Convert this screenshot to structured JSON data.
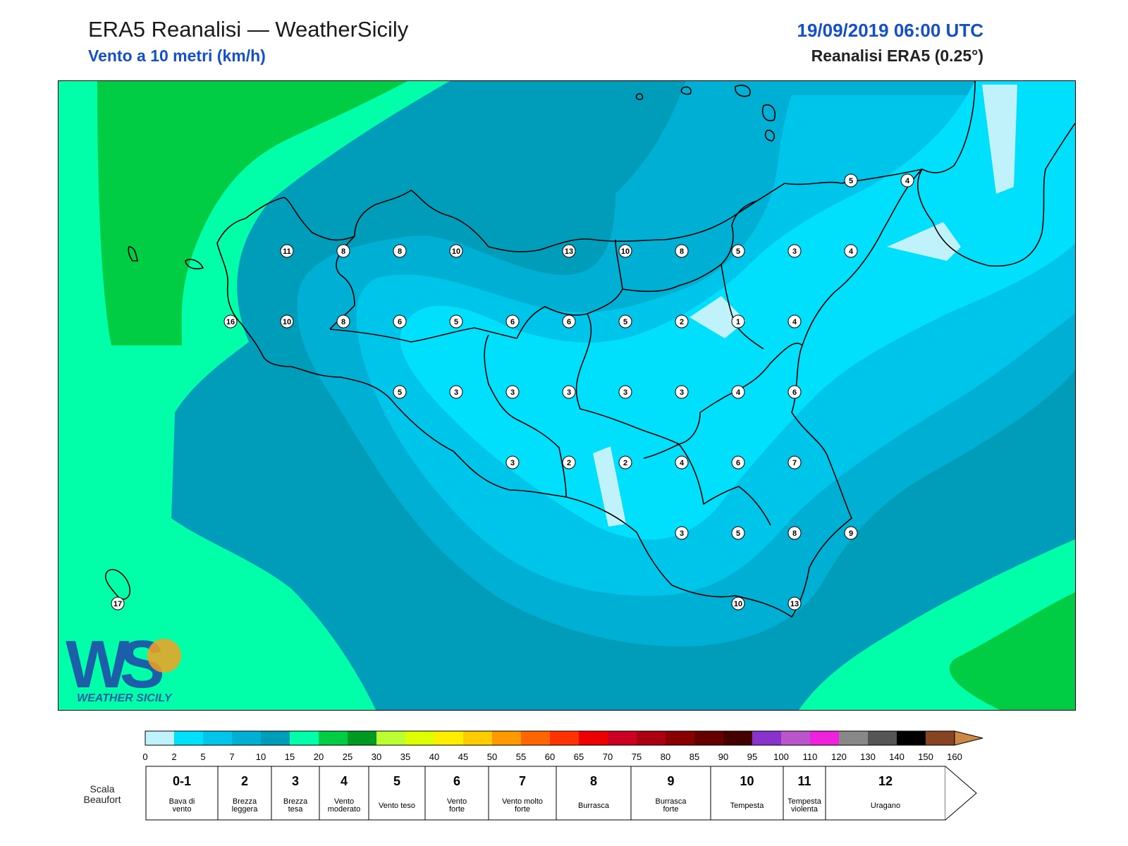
{
  "header": {
    "title": "ERA5 Reanalisi — WeatherSicily",
    "subtitle": "Vento a 10 metri (km/h)",
    "datetime": "19/09/2019 06:00 UTC",
    "source": "Reanalisi ERA5 (0.25°)"
  },
  "logo": {
    "letters": "WS",
    "text": "WEATHER SICILY"
  },
  "map": {
    "colors": {
      "c0_2": "#bff2fb",
      "c2_5": "#00e0fc",
      "c5_7": "#00c5ea",
      "c7_10": "#00b0d4",
      "c10_15": "#009dba",
      "c15_20": "#00ffa8",
      "c20_25": "#00cc44"
    },
    "wind_values": [
      {
        "v": "11",
        "gx": 0,
        "gy": 0
      },
      {
        "v": "8",
        "gx": 1,
        "gy": 0
      },
      {
        "v": "8",
        "gx": 2,
        "gy": 0
      },
      {
        "v": "10",
        "gx": 3,
        "gy": 0
      },
      {
        "v": "13",
        "gx": 5,
        "gy": 0
      },
      {
        "v": "10",
        "gx": 6,
        "gy": 0
      },
      {
        "v": "8",
        "gx": 7,
        "gy": 0
      },
      {
        "v": "5",
        "gx": 8,
        "gy": 0
      },
      {
        "v": "3",
        "gx": 9,
        "gy": 0
      },
      {
        "v": "4",
        "gx": 10,
        "gy": 0
      },
      {
        "v": "16",
        "gx": -1,
        "gy": 1
      },
      {
        "v": "10",
        "gx": 0,
        "gy": 1
      },
      {
        "v": "8",
        "gx": 1,
        "gy": 1
      },
      {
        "v": "6",
        "gx": 2,
        "gy": 1
      },
      {
        "v": "5",
        "gx": 3,
        "gy": 1
      },
      {
        "v": "6",
        "gx": 4,
        "gy": 1
      },
      {
        "v": "6",
        "gx": 5,
        "gy": 1
      },
      {
        "v": "5",
        "gx": 6,
        "gy": 1
      },
      {
        "v": "2",
        "gx": 7,
        "gy": 1
      },
      {
        "v": "1",
        "gx": 8,
        "gy": 1
      },
      {
        "v": "4",
        "gx": 9,
        "gy": 1
      },
      {
        "v": "5",
        "gx": 2,
        "gy": 2
      },
      {
        "v": "3",
        "gx": 3,
        "gy": 2
      },
      {
        "v": "3",
        "gx": 4,
        "gy": 2
      },
      {
        "v": "3",
        "gx": 5,
        "gy": 2
      },
      {
        "v": "3",
        "gx": 6,
        "gy": 2
      },
      {
        "v": "3",
        "gx": 7,
        "gy": 2
      },
      {
        "v": "4",
        "gx": 8,
        "gy": 2
      },
      {
        "v": "6",
        "gx": 9,
        "gy": 2
      },
      {
        "v": "3",
        "gx": 4,
        "gy": 3
      },
      {
        "v": "2",
        "gx": 5,
        "gy": 3
      },
      {
        "v": "2",
        "gx": 6,
        "gy": 3
      },
      {
        "v": "4",
        "gx": 7,
        "gy": 3
      },
      {
        "v": "6",
        "gx": 8,
        "gy": 3
      },
      {
        "v": "7",
        "gx": 9,
        "gy": 3
      },
      {
        "v": "3",
        "gx": 7,
        "gy": 4
      },
      {
        "v": "5",
        "gx": 8,
        "gy": 4
      },
      {
        "v": "8",
        "gx": 9,
        "gy": 4
      },
      {
        "v": "9",
        "gx": 10,
        "gy": 4
      },
      {
        "v": "10",
        "gx": 8,
        "gy": 5
      },
      {
        "v": "13",
        "gx": 9,
        "gy": 5
      },
      {
        "v": "5",
        "gx": 10,
        "gy": -1
      },
      {
        "v": "4",
        "gx": 11,
        "gy": -1
      },
      {
        "v": "17",
        "gx": -3,
        "gy": 5
      }
    ]
  },
  "colorbar": {
    "ticks": [
      "0",
      "2",
      "5",
      "7",
      "10",
      "15",
      "20",
      "25",
      "30",
      "35",
      "40",
      "45",
      "50",
      "55",
      "60",
      "65",
      "70",
      "75",
      "80",
      "85",
      "90",
      "95",
      "100",
      "110",
      "120",
      "130",
      "140",
      "150",
      "160"
    ],
    "colors": [
      "#bff2fb",
      "#00e0fc",
      "#00c5ea",
      "#00b0d4",
      "#009dba",
      "#00ffa8",
      "#00cc44",
      "#009922",
      "#bbff33",
      "#ddff00",
      "#ffee00",
      "#ffcc00",
      "#ff9900",
      "#ff6600",
      "#ff3300",
      "#ee0000",
      "#cc0022",
      "#aa0011",
      "#880000",
      "#660000",
      "#440000",
      "#8833cc",
      "#bb55cc",
      "#ee22dd",
      "#888888",
      "#555555",
      "#000000",
      "#884422",
      "#cc8844"
    ]
  },
  "beaufort": {
    "label": "Scala Beaufort",
    "cells": [
      {
        "force": "0-1",
        "desc": "Bava di vento"
      },
      {
        "force": "2",
        "desc": "Brezza leggera"
      },
      {
        "force": "3",
        "desc": "Brezza tesa"
      },
      {
        "force": "4",
        "desc": "Vento moderato"
      },
      {
        "force": "5",
        "desc": "Vento teso"
      },
      {
        "force": "6",
        "desc": "Vento forte"
      },
      {
        "force": "7",
        "desc": "Vento molto forte"
      },
      {
        "force": "8",
        "desc": "Burrasca"
      },
      {
        "force": "9",
        "desc": "Burrasca forte"
      },
      {
        "force": "10",
        "desc": "Tempesta"
      },
      {
        "force": "11",
        "desc": "Tempesta violenta"
      },
      {
        "force": "12",
        "desc": "Uragano"
      }
    ]
  }
}
